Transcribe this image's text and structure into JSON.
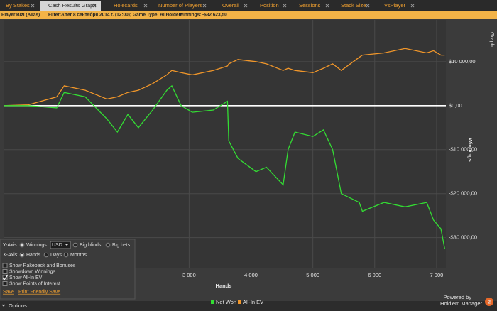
{
  "tabs": [
    "By Stakes",
    "Cash Results Graph",
    "Holecards",
    "Number of Players",
    "Overall",
    "Position",
    "Sessions",
    "Stack Size",
    "VsPlayer"
  ],
  "filter_bar": {
    "player_label": "Player:",
    "player": "Bizi (Alias)",
    "filter_label": "Filter:",
    "filter": "After 8 сентября 2014 г. (12:00); Game Type: AllHoldem",
    "winnings_label": "Winnings:",
    "winnings": "-$32 623,50"
  },
  "side_tab": "Graph",
  "chart_data": {
    "type": "line",
    "x_label": "Hands",
    "y_label": "Winnings",
    "xlim": [
      0,
      7150
    ],
    "ylim": [
      -37000,
      19500
    ],
    "xticks": [
      {
        "value": 3000,
        "label": "3 000"
      },
      {
        "value": 4000,
        "label": "4 000"
      },
      {
        "value": 5000,
        "label": "5 000"
      },
      {
        "value": 6000,
        "label": "6 000"
      },
      {
        "value": 7000,
        "label": "7 000"
      }
    ],
    "yticks": [
      {
        "value": 10000,
        "label": "$10 000,00"
      },
      {
        "value": 0,
        "label": "$0,00"
      },
      {
        "value": -10000,
        "label": "-$10 000,00"
      },
      {
        "value": -20000,
        "label": "-$20 000,00"
      },
      {
        "value": -30000,
        "label": "-$30 000,00"
      }
    ],
    "grid": true,
    "x": [
      0,
      400,
      860,
      980,
      1320,
      1670,
      1840,
      2010,
      2180,
      2410,
      2640,
      2720,
      2870,
      3050,
      3390,
      3620,
      3640,
      3790,
      4080,
      4250,
      4520,
      4600,
      4710,
      5000,
      5170,
      5320,
      5460,
      5750,
      5800,
      6150,
      6490,
      6840,
      6950,
      7070,
      7130
    ],
    "series": [
      {
        "name": "Net Won",
        "color": "#33dd33",
        "values": [
          0,
          0,
          -500,
          3000,
          2000,
          -3000,
          -6000,
          -2000,
          -5000,
          -1000,
          3500,
          4500,
          0,
          -1500,
          -1000,
          1000,
          -8000,
          -12000,
          -15000,
          -14000,
          -18000,
          -10000,
          -6000,
          -7000,
          -5500,
          -10000,
          -20000,
          -22000,
          -24000,
          -22000,
          -23000,
          -22000,
          -26000,
          -28000,
          -32500
        ]
      },
      {
        "name": "All-In EV",
        "color": "#f0962a",
        "values": [
          0,
          200,
          2000,
          4500,
          3500,
          1500,
          2000,
          3000,
          3500,
          5000,
          7000,
          8000,
          7500,
          7000,
          8000,
          9000,
          9500,
          10500,
          10000,
          9500,
          8000,
          8500,
          8000,
          7500,
          8500,
          9500,
          8000,
          11000,
          11500,
          12000,
          13000,
          12000,
          12500,
          11500,
          11500
        ]
      }
    ]
  },
  "options_panel": {
    "y_axis_label": "Y-Axis:",
    "y_options": [
      "Winnings",
      "Big blinds",
      "Big bets"
    ],
    "currency": "USD",
    "x_axis_label": "X-Axis:",
    "x_options": [
      "Hands",
      "Days",
      "Months"
    ],
    "checkboxes": [
      "Show Rakeback and Bonuses",
      "Showdown Winnings",
      "Show All-In EV",
      "Show Points of Interest"
    ],
    "links": [
      "Save",
      "Print Friendly Save"
    ]
  },
  "footer": {
    "options": "Options",
    "powered_by": "Powered by",
    "brand": "Hold'em Manager",
    "badge": "2"
  }
}
